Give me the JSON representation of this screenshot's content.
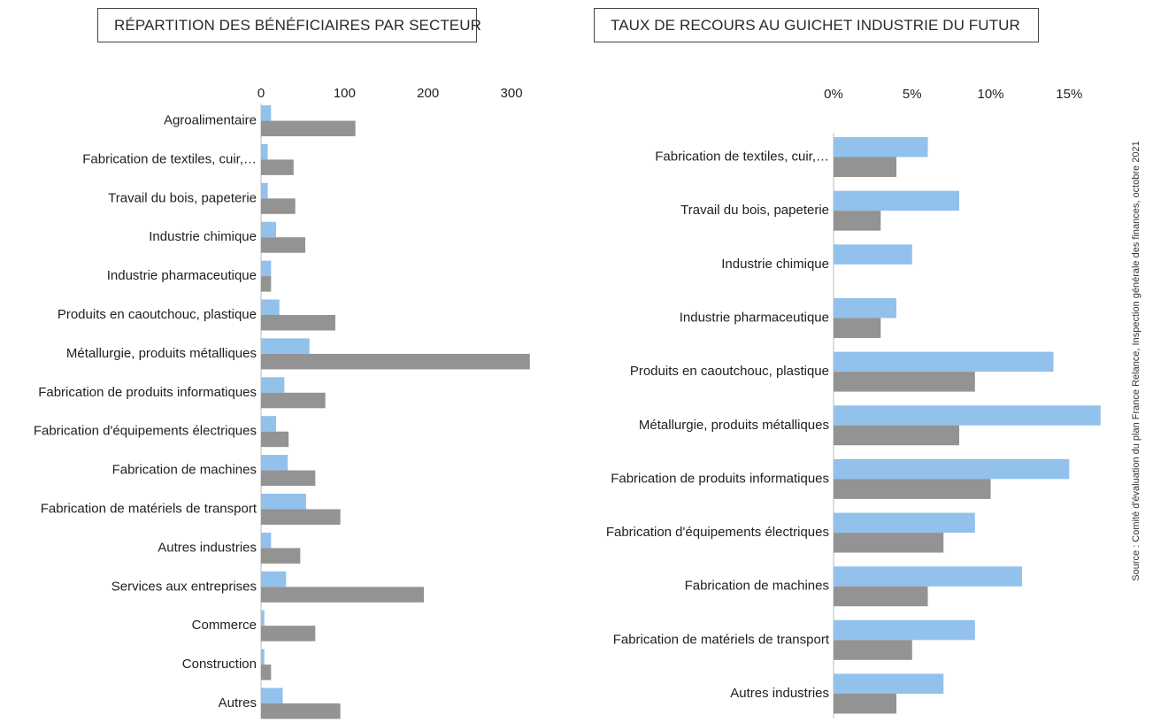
{
  "colors": {
    "series_a": "#92c1ec",
    "series_b": "#939393",
    "axis": "#bbbbbb"
  },
  "source_note": "Source : Comité d'évaluation du plan France Relance, Inspection générale des finances, octobre 2021",
  "chart_data": [
    {
      "type": "bar",
      "orientation": "horizontal",
      "title": "RÉPARTITION DES BÉNÉFICIAIRES PAR SECTEUR",
      "xlim": [
        0,
        320
      ],
      "ticks": [
        {
          "value": 0,
          "label": "0"
        },
        {
          "value": 100,
          "label": "100"
        },
        {
          "value": 200,
          "label": "200"
        },
        {
          "value": 300,
          "label": "300"
        }
      ],
      "categories": [
        "Agroalimentaire",
        "Fabrication de textiles, cuir,…",
        "Travail du bois, papeterie",
        "Industrie chimique",
        "Industrie pharmaceutique",
        "Produits en caoutchouc, plastique",
        "Métallurgie, produits métalliques",
        "Fabrication de produits informatiques",
        "Fabrication d'équipements électriques",
        "Fabrication de machines",
        "Fabrication de matériels de transport",
        "Autres industries",
        "Services aux entreprises",
        "Commerce",
        "Construction",
        "Autres"
      ],
      "series": [
        {
          "values": [
            12,
            8,
            8,
            18,
            12,
            22,
            58,
            28,
            18,
            32,
            54,
            12,
            30,
            4,
            4,
            26
          ]
        },
        {
          "values": [
            113,
            39,
            41,
            53,
            12,
            89,
            322,
            77,
            33,
            65,
            95,
            47,
            195,
            65,
            12,
            95
          ]
        }
      ]
    },
    {
      "type": "bar",
      "orientation": "horizontal",
      "title": "TAUX DE RECOURS AU GUICHET INDUSTRIE DU FUTUR",
      "xlim": [
        0,
        17
      ],
      "ticks": [
        {
          "value": 0,
          "label": "0%"
        },
        {
          "value": 5,
          "label": "5%"
        },
        {
          "value": 10,
          "label": "10%"
        },
        {
          "value": 15,
          "label": "15%"
        }
      ],
      "categories": [
        "Fabrication de textiles, cuir,…",
        "Travail du bois, papeterie",
        "Industrie chimique",
        "Industrie pharmaceutique",
        "Produits en caoutchouc, plastique",
        "Métallurgie, produits métalliques",
        "Fabrication de produits informatiques",
        "Fabrication d'équipements électriques",
        "Fabrication de machines",
        "Fabrication de matériels de transport",
        "Autres industries"
      ],
      "series": [
        {
          "values": [
            6,
            8,
            5,
            4,
            14,
            17,
            15,
            9,
            12,
            9,
            7
          ]
        },
        {
          "values": [
            4,
            3,
            0,
            3,
            9,
            8,
            10,
            7,
            6,
            5,
            4
          ]
        }
      ]
    }
  ]
}
